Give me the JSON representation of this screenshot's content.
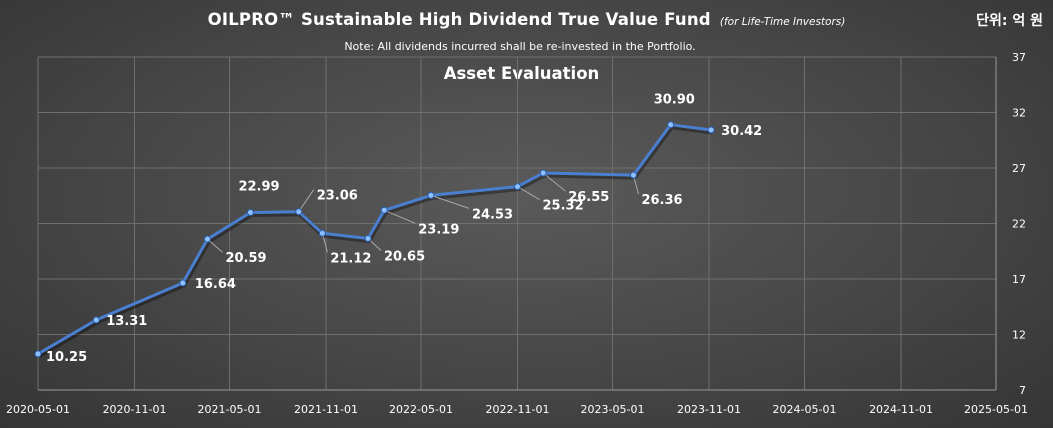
{
  "header": {
    "title": "OILPRO™ Sustainable High Dividend True Value Fund",
    "title_tag": "(for Life-Time Investors)",
    "unit": "단위: 억 원",
    "note": "Note: All dividends incurred shall be re-invested in the Portfolio."
  },
  "chart_data": {
    "type": "line",
    "title": "Asset Evaluation",
    "xlabel": "",
    "ylabel": "",
    "x_axis": {
      "type": "date",
      "range": [
        "2020-05-01",
        "2025-05-01"
      ],
      "ticks": [
        "2020-05-01",
        "2020-11-01",
        "2021-05-01",
        "2021-11-01",
        "2022-05-01",
        "2022-11-01",
        "2023-05-01",
        "2023-11-01",
        "2024-05-01",
        "2024-11-01",
        "2025-05-01"
      ]
    },
    "y_axis": {
      "position": "right",
      "range": [
        7,
        37
      ],
      "ticks": [
        7,
        12,
        17,
        22,
        27,
        32,
        37
      ]
    },
    "grid": true,
    "line_color": "#4a7fd0",
    "series": [
      {
        "points": [
          {
            "x": "2020-05-01",
            "y": 10.25,
            "label": "10.25"
          },
          {
            "x": "2020-08-20",
            "y": 13.31,
            "label": "13.31"
          },
          {
            "x": "2021-02-01",
            "y": 16.64,
            "label": "16.64"
          },
          {
            "x": "2021-03-20",
            "y": 20.59,
            "label": "20.59"
          },
          {
            "x": "2021-06-10",
            "y": 22.99,
            "label": "22.99"
          },
          {
            "x": "2021-09-10",
            "y": 23.06,
            "label": "23.06"
          },
          {
            "x": "2021-10-25",
            "y": 21.12,
            "label": "21.12"
          },
          {
            "x": "2022-01-20",
            "y": 20.65,
            "label": "20.65"
          },
          {
            "x": "2022-02-20",
            "y": 23.19,
            "label": "23.19"
          },
          {
            "x": "2022-05-20",
            "y": 24.53,
            "label": "24.53"
          },
          {
            "x": "2022-11-01",
            "y": 25.32,
            "label": "25.32"
          },
          {
            "x": "2022-12-20",
            "y": 26.55,
            "label": "26.55"
          },
          {
            "x": "2023-06-10",
            "y": 26.36,
            "label": "26.36"
          },
          {
            "x": "2023-08-20",
            "y": 30.9,
            "label": "30.90"
          },
          {
            "x": "2023-11-05",
            "y": 30.42,
            "label": "30.42"
          }
        ]
      }
    ]
  }
}
